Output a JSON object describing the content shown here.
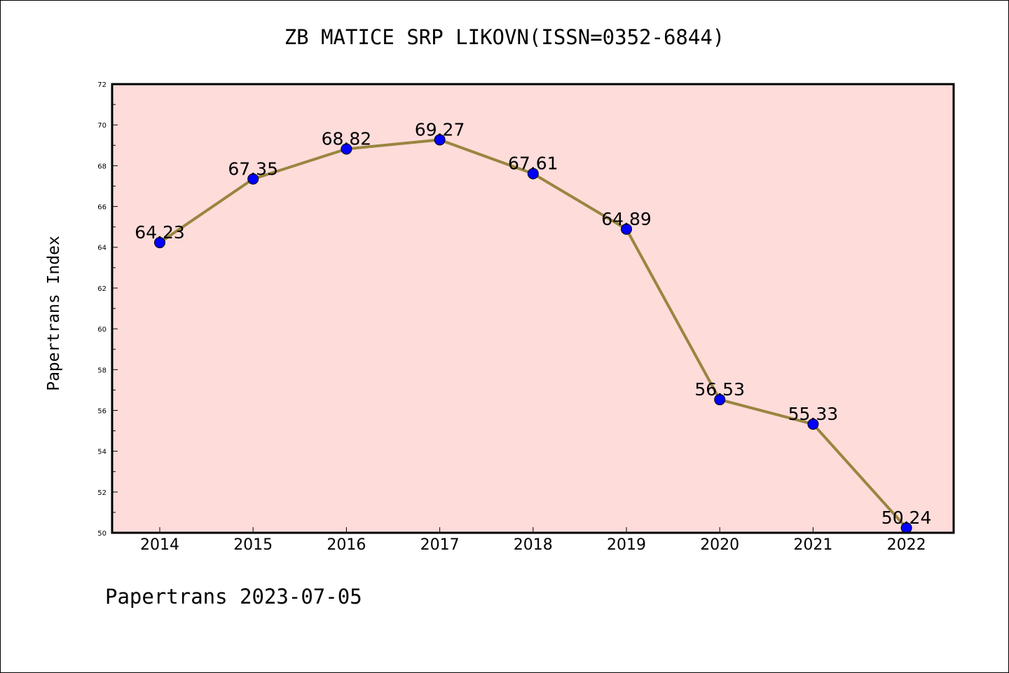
{
  "title": "ZB MATICE SRP LIKOVN(ISSN=0352-6844)",
  "footer": "Papertrans 2023-07-05",
  "colors": {
    "plot_background": "#fddcda",
    "line": "#9a8540",
    "marker": "#0000ff"
  },
  "chart_data": {
    "type": "line",
    "title": "ZB MATICE SRP LIKOVN(ISSN=0352-6844)",
    "xlabel": "",
    "ylabel": "Papertrans Index",
    "categories": [
      "2014",
      "2015",
      "2016",
      "2017",
      "2018",
      "2019",
      "2020",
      "2021",
      "2022"
    ],
    "series": [
      {
        "values": [
          64.23,
          67.35,
          68.82,
          69.27,
          67.61,
          64.89,
          56.53,
          55.33,
          50.24
        ],
        "labels": [
          "64.23",
          "67.35",
          "68.82",
          "69.27",
          "67.61",
          "64.89",
          "56.53",
          "55.33",
          "50.24"
        ]
      }
    ],
    "ylim": [
      50,
      72
    ],
    "yticks": [
      "50",
      "52",
      "54",
      "56",
      "58",
      "60",
      "62",
      "64",
      "66",
      "68",
      "70",
      "72"
    ],
    "grid": false
  }
}
